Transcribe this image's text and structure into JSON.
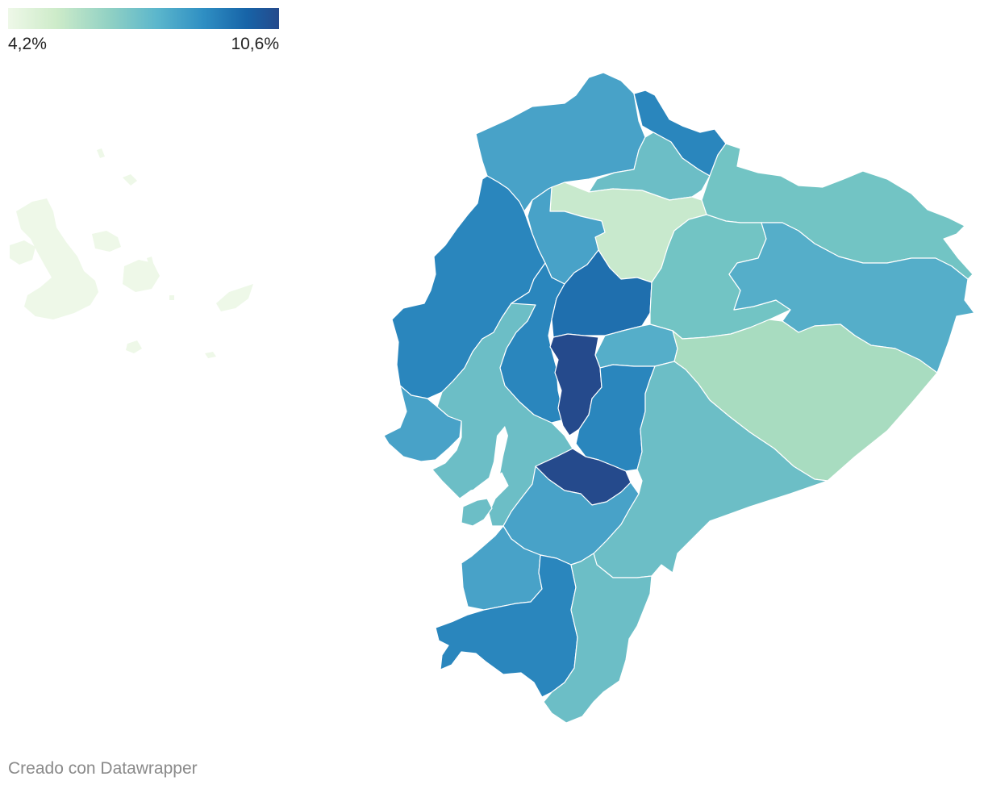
{
  "legend": {
    "min_label": "4,2%",
    "max_label": "10,6%",
    "gradient": [
      "#eef8e8",
      "#cdebc9",
      "#8fd0c4",
      "#5bb6cc",
      "#2f8fc3",
      "#1764a8",
      "#254a8c"
    ]
  },
  "map": {
    "region_colors": {
      "lightest": "#eef8e8",
      "light_green": "#c8e9cd",
      "mint": "#a8dcc0",
      "teal": "#6cbec6",
      "teal_blue": "#55aec9",
      "medium_blue": "#48a2c8",
      "blue": "#2a86bd",
      "dark_blue": "#1f6fae",
      "navy": "#264e8f"
    },
    "border_color": "#ffffff"
  },
  "footer": {
    "credit_prefix": "Creado con ",
    "credit_link": "Datawrapper"
  }
}
